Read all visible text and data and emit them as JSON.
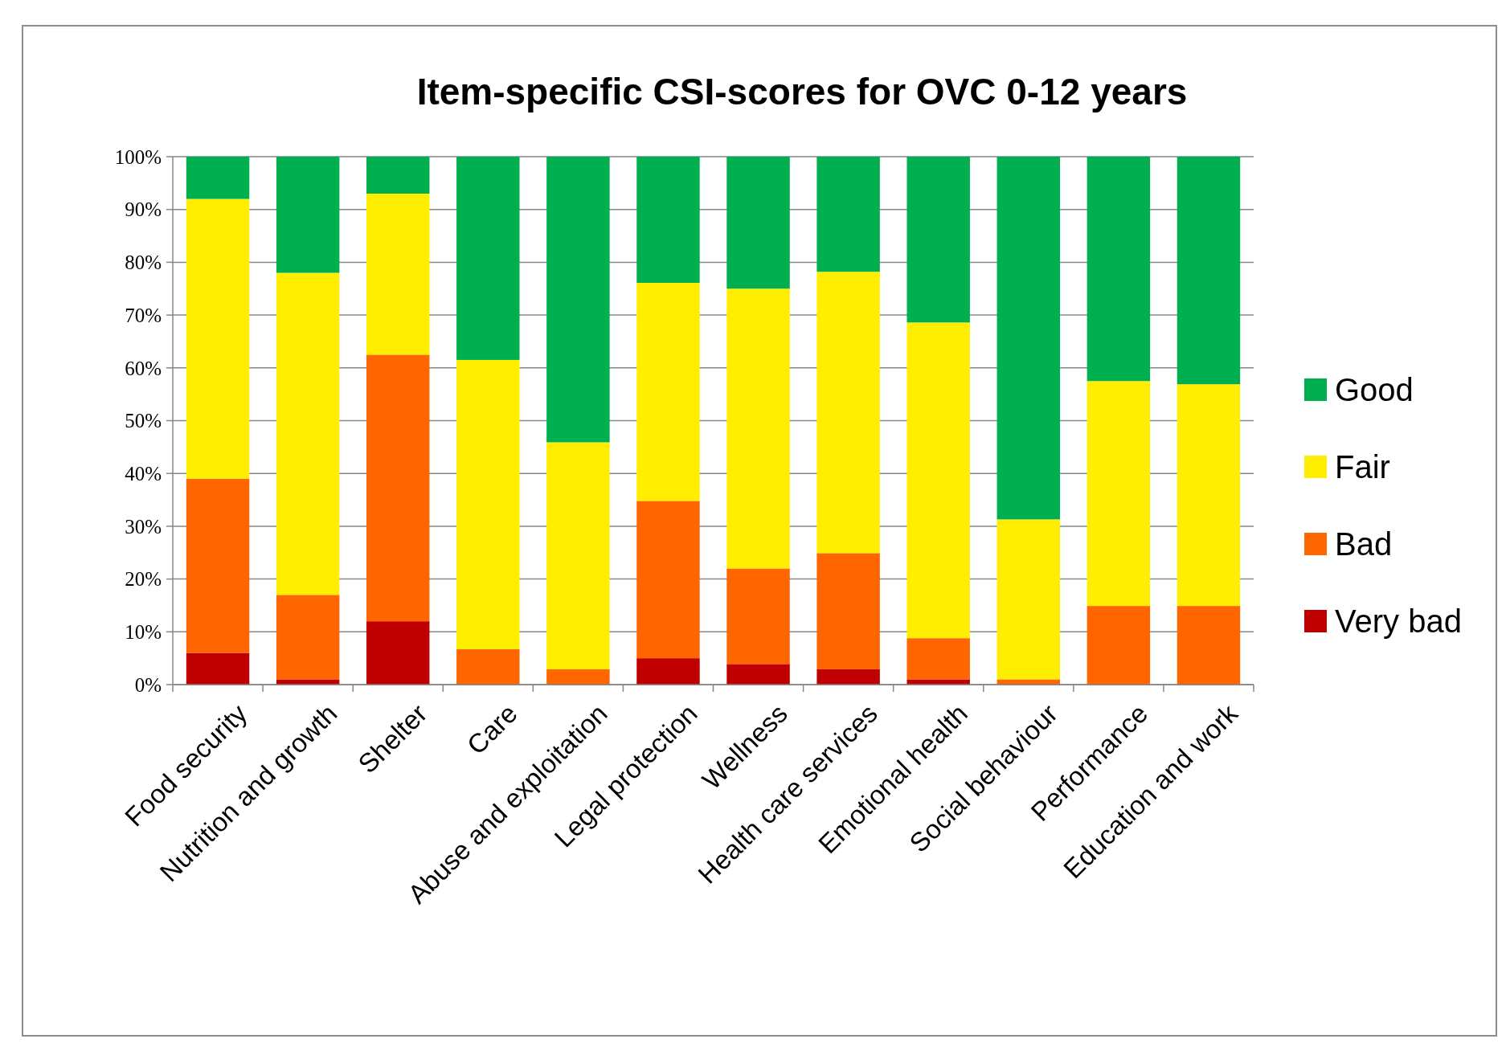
{
  "chart_data": {
    "type": "bar",
    "title": "Item-specific CSI-scores for OVC 0-12 years",
    "stacked": true,
    "categories": [
      "Food security",
      "Nutrition and growth",
      "Shelter",
      "Care",
      "Abuse and exploitation",
      "Legal protection",
      "Wellness",
      "Health care services",
      "Emotional health",
      "Social behaviour",
      "Performance",
      "Education and work"
    ],
    "series": [
      {
        "name": "Very bad",
        "color": "#c00000",
        "values": [
          6,
          1,
          12,
          0,
          0,
          5,
          3.9,
          2.9,
          1,
          0,
          0,
          0
        ]
      },
      {
        "name": "Bad",
        "color": "#ff6600",
        "values": [
          33,
          16,
          50.5,
          6.7,
          2.9,
          29.8,
          18.1,
          22,
          7.8,
          1,
          14.9,
          14.9
        ]
      },
      {
        "name": "Fair",
        "color": "#ffee00",
        "values": [
          53,
          61,
          30.5,
          54.8,
          43,
          41.3,
          53,
          53.3,
          59.8,
          30.3,
          42.6,
          42
        ]
      },
      {
        "name": "Good",
        "color": "#00b050",
        "values": [
          8,
          22,
          7,
          38.5,
          54.1,
          23.9,
          25,
          21.8,
          31.4,
          68.7,
          42.5,
          43.1
        ]
      }
    ],
    "ylim": [
      0,
      100
    ],
    "yticks": [
      {
        "value": 0,
        "label": "0%"
      },
      {
        "value": 10,
        "label": "10%"
      },
      {
        "value": 20,
        "label": "20%"
      },
      {
        "value": 30,
        "label": "30%"
      },
      {
        "value": 40,
        "label": "40%"
      },
      {
        "value": 50,
        "label": "50%"
      },
      {
        "value": 60,
        "label": "60%"
      },
      {
        "value": 70,
        "label": "70%"
      },
      {
        "value": 80,
        "label": "80%"
      },
      {
        "value": 90,
        "label": "90%"
      },
      {
        "value": 100,
        "label": "100%"
      }
    ],
    "grid": "y",
    "legend": "right"
  }
}
